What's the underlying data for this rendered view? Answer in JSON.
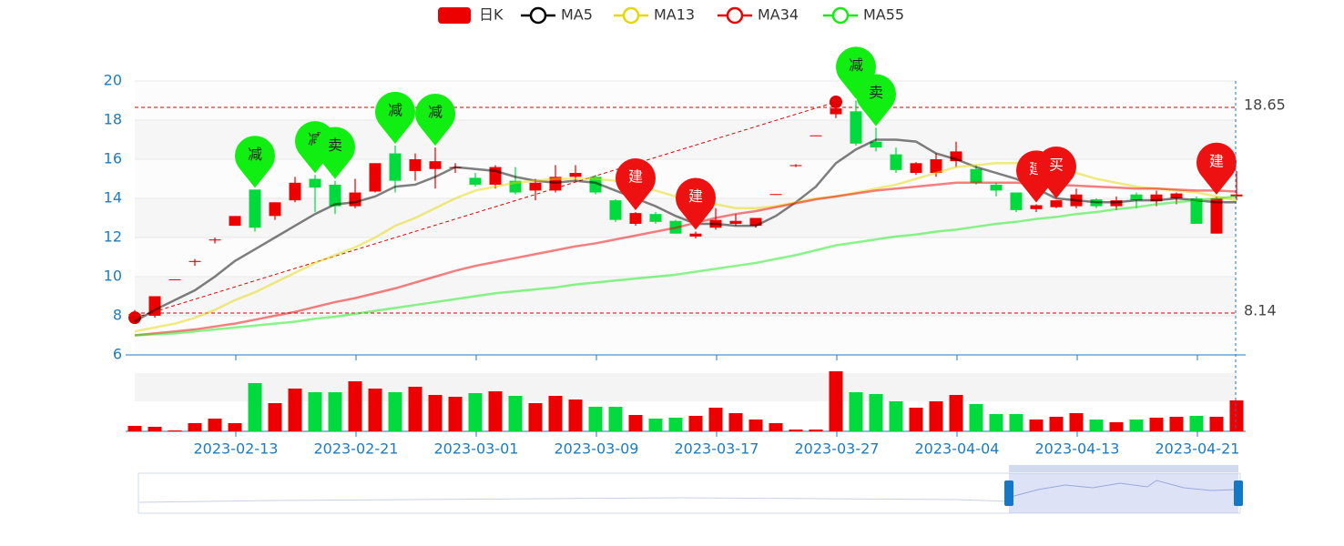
{
  "chart_data": {
    "type": "candlestick",
    "categories": [
      null,
      null,
      null,
      null,
      null,
      "2023-02-13",
      null,
      null,
      null,
      null,
      null,
      "2023-02-21",
      null,
      null,
      null,
      null,
      null,
      "2023-03-01",
      null,
      null,
      null,
      null,
      null,
      "2023-03-09",
      null,
      null,
      null,
      null,
      null,
      "2023-03-17",
      null,
      null,
      null,
      null,
      null,
      "2023-03-27",
      null,
      null,
      null,
      null,
      null,
      "2023-04-04",
      null,
      null,
      null,
      null,
      null,
      "2023-04-13",
      null,
      null,
      null,
      null,
      null,
      "2023-04-21",
      null,
      null
    ],
    "candle": {
      "name": "日K",
      "up_color": "#ec0000",
      "down_color": "#00da3c",
      "open": [
        8.0,
        8.0,
        9.85,
        10.75,
        11.85,
        12.6,
        14.45,
        13.1,
        13.9,
        15.0,
        14.7,
        13.6,
        14.35,
        16.3,
        15.4,
        15.5,
        15.55,
        15.05,
        14.7,
        14.9,
        14.4,
        14.4,
        15.1,
        15.1,
        13.9,
        12.7,
        13.2,
        12.85,
        12.05,
        12.5,
        12.7,
        12.6,
        14.2,
        15.65,
        17.2,
        18.3,
        18.45,
        16.9,
        16.25,
        15.3,
        15.3,
        15.9,
        15.5,
        14.7,
        14.3,
        13.45,
        13.55,
        13.6,
        13.95,
        13.6,
        14.2,
        13.85,
        14.0,
        14.0,
        12.2,
        14.1
      ],
      "close": [
        8.1,
        9.0,
        9.86,
        10.8,
        11.9,
        13.1,
        12.5,
        13.8,
        14.8,
        14.55,
        13.6,
        14.3,
        15.8,
        14.9,
        16.0,
        15.9,
        15.6,
        14.7,
        15.6,
        14.3,
        14.8,
        15.1,
        15.3,
        14.3,
        12.9,
        13.25,
        12.8,
        12.2,
        12.2,
        12.9,
        12.85,
        13.0,
        14.22,
        15.7,
        17.22,
        18.6,
        16.8,
        16.6,
        15.45,
        15.8,
        16.0,
        16.4,
        14.8,
        14.4,
        13.4,
        13.65,
        13.9,
        14.2,
        13.6,
        13.9,
        13.9,
        14.2,
        14.25,
        12.7,
        14.0,
        14.2
      ],
      "low": [
        7.9,
        7.9,
        9.85,
        10.55,
        11.7,
        12.6,
        12.3,
        12.9,
        13.8,
        13.3,
        13.2,
        13.5,
        14.3,
        14.3,
        14.9,
        14.5,
        15.3,
        14.6,
        14.5,
        14.2,
        13.9,
        14.3,
        14.9,
        14.2,
        12.8,
        12.6,
        12.7,
        12.2,
        11.95,
        12.4,
        12.6,
        12.5,
        14.2,
        15.6,
        17.2,
        18.1,
        16.7,
        16.4,
        15.3,
        15.2,
        15.1,
        15.6,
        14.7,
        14.1,
        13.3,
        13.3,
        13.5,
        13.5,
        13.5,
        13.4,
        13.5,
        13.6,
        13.7,
        12.7,
        12.2,
        13.9
      ],
      "high": [
        8.3,
        9.0,
        9.87,
        10.9,
        12.0,
        13.1,
        14.45,
        13.8,
        15.1,
        15.2,
        14.9,
        15.0,
        15.8,
        16.7,
        16.3,
        16.6,
        15.8,
        15.3,
        15.7,
        15.6,
        15.0,
        15.7,
        15.7,
        15.2,
        13.95,
        13.3,
        13.3,
        12.9,
        12.3,
        13.5,
        13.2,
        13.0,
        14.22,
        15.75,
        17.22,
        18.95,
        19.0,
        17.6,
        16.6,
        15.85,
        16.3,
        16.9,
        15.7,
        14.8,
        14.3,
        13.7,
        13.9,
        14.5,
        14.0,
        14.1,
        14.3,
        14.4,
        14.3,
        14.1,
        14.1,
        15.4
      ]
    },
    "volume": [
      6,
      5,
      1,
      9,
      14,
      9,
      53,
      31,
      47,
      43,
      43,
      55,
      47,
      43,
      49,
      40,
      38,
      42,
      44,
      39,
      31,
      39,
      35,
      27,
      27,
      18,
      14,
      15,
      17,
      26,
      20,
      13,
      9,
      2,
      2,
      66,
      43,
      41,
      33,
      26,
      33,
      40,
      30,
      19,
      19,
      13,
      16,
      20,
      13,
      10,
      13,
      15,
      16,
      17,
      16,
      34
    ],
    "series": [
      {
        "name": "MA5",
        "color": "#000000",
        "values": [
          7.7,
          8.3,
          8.8,
          9.3,
          10.0,
          10.8,
          11.4,
          12.0,
          12.6,
          13.2,
          13.7,
          13.8,
          14.1,
          14.6,
          14.7,
          15.1,
          15.6,
          15.5,
          15.4,
          15.1,
          14.9,
          14.8,
          14.9,
          14.8,
          14.4,
          14.0,
          13.6,
          13.1,
          12.7,
          12.7,
          12.6,
          12.6,
          13.1,
          13.8,
          14.6,
          15.8,
          16.5,
          17.0,
          17.0,
          16.9,
          16.3,
          16.0,
          15.6,
          15.3,
          15.0,
          14.5,
          14.0,
          13.9,
          13.8,
          13.8,
          13.9,
          13.9,
          14.0,
          13.9,
          13.8,
          13.8
        ]
      },
      {
        "name": "MA13",
        "color": "#e6d800",
        "values": [
          7.2,
          7.4,
          7.6,
          7.9,
          8.3,
          8.8,
          9.2,
          9.7,
          10.2,
          10.7,
          11.1,
          11.5,
          12.0,
          12.6,
          13.0,
          13.5,
          14.0,
          14.4,
          14.6,
          14.8,
          14.9,
          15.0,
          15.0,
          15.0,
          14.9,
          14.7,
          14.4,
          14.1,
          13.9,
          13.7,
          13.5,
          13.5,
          13.6,
          13.8,
          14.0,
          14.1,
          14.3,
          14.5,
          14.7,
          15.0,
          15.3,
          15.6,
          15.7,
          15.8,
          15.8,
          15.7,
          15.5,
          15.3,
          15.0,
          14.8,
          14.6,
          14.5,
          14.4,
          14.3,
          14.1,
          13.9
        ]
      },
      {
        "name": "MA34",
        "color": "#ee0000",
        "values": [
          7.0,
          7.1,
          7.2,
          7.3,
          7.45,
          7.6,
          7.8,
          8.0,
          8.2,
          8.45,
          8.7,
          8.9,
          9.15,
          9.4,
          9.7,
          10.0,
          10.3,
          10.55,
          10.75,
          10.95,
          11.15,
          11.35,
          11.55,
          11.7,
          11.9,
          12.1,
          12.3,
          12.5,
          12.75,
          13.0,
          13.2,
          13.35,
          13.55,
          13.75,
          13.95,
          14.1,
          14.25,
          14.4,
          14.5,
          14.6,
          14.7,
          14.8,
          14.8,
          14.8,
          14.8,
          14.75,
          14.7,
          14.65,
          14.6,
          14.55,
          14.5,
          14.5,
          14.45,
          14.4,
          14.4,
          14.35
        ]
      },
      {
        "name": "MA55",
        "color": "#11ee11",
        "values": [
          7.0,
          7.05,
          7.1,
          7.2,
          7.3,
          7.4,
          7.5,
          7.6,
          7.7,
          7.85,
          7.95,
          8.1,
          8.25,
          8.4,
          8.55,
          8.7,
          8.85,
          9.0,
          9.15,
          9.25,
          9.35,
          9.45,
          9.6,
          9.7,
          9.8,
          9.9,
          10.0,
          10.1,
          10.25,
          10.4,
          10.55,
          10.7,
          10.9,
          11.1,
          11.35,
          11.6,
          11.75,
          11.9,
          12.05,
          12.15,
          12.3,
          12.4,
          12.55,
          12.7,
          12.8,
          12.95,
          13.05,
          13.2,
          13.3,
          13.45,
          13.55,
          13.7,
          13.8,
          13.9,
          14.0,
          14.1
        ]
      }
    ],
    "ylim": [
      6,
      20
    ],
    "yticks": [
      6,
      8,
      10,
      12,
      14,
      16,
      18,
      20
    ],
    "mark_lines": [
      {
        "value": 18.65,
        "color": "#e00000"
      },
      {
        "value": 8.14,
        "color": "#e00000"
      }
    ],
    "trend_line": {
      "color": "#e00000",
      "from": {
        "index": 0,
        "value": 7.9
      },
      "to": {
        "index": 35,
        "value": 18.93
      }
    },
    "mark_points": [
      {
        "index": 6,
        "label": "减",
        "color": "#11ee11",
        "text_color": "#222222"
      },
      {
        "index": 9,
        "label": "减",
        "color": "#11ee11",
        "text_color": "#222222"
      },
      {
        "index": 10,
        "label": "卖",
        "color": "#11ee11",
        "text_color": "#222222"
      },
      {
        "index": 13,
        "label": "减",
        "color": "#11ee11",
        "text_color": "#222222"
      },
      {
        "index": 15,
        "label": "减",
        "color": "#11ee11",
        "text_color": "#222222"
      },
      {
        "index": 25,
        "label": "建",
        "color": "#ee1111",
        "text_color": "#ffffff"
      },
      {
        "index": 28,
        "label": "建",
        "color": "#ee1111",
        "text_color": "#ffffff"
      },
      {
        "index": 36,
        "label": "减",
        "color": "#11ee11",
        "text_color": "#222222"
      },
      {
        "index": 37,
        "label": "卖",
        "color": "#11ee11",
        "text_color": "#222222"
      },
      {
        "index": 45,
        "label": "建",
        "color": "#ee1111",
        "text_color": "#ffffff"
      },
      {
        "index": 46,
        "label": "买",
        "color": "#ee1111",
        "text_color": "#ffffff"
      },
      {
        "index": 54,
        "label": "建",
        "color": "#ee1111",
        "text_color": "#ffffff"
      }
    ]
  }
}
